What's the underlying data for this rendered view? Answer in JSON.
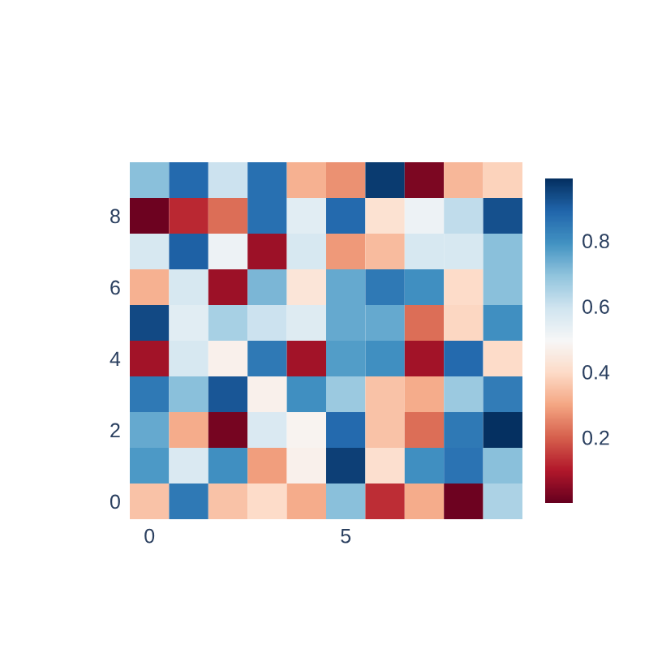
{
  "chart_data": {
    "type": "heatmap",
    "categories": [
      "0",
      null,
      null,
      null,
      null,
      "5",
      null,
      null,
      null,
      null
    ],
    "y_categories": [
      null,
      "8",
      null,
      "6",
      null,
      "4",
      null,
      "2",
      null,
      "0"
    ],
    "cells": [
      [
        0.7,
        0.88,
        0.6,
        0.87,
        0.32,
        0.27,
        0.97,
        0.03,
        0.33,
        0.38
      ],
      [
        0.01,
        0.12,
        0.22,
        0.87,
        0.55,
        0.88,
        0.42,
        0.52,
        0.62,
        0.93
      ],
      [
        0.58,
        0.9,
        0.52,
        0.07,
        0.58,
        0.28,
        0.34,
        0.58,
        0.58,
        0.7
      ],
      [
        0.32,
        0.58,
        0.07,
        0.72,
        0.43,
        0.75,
        0.85,
        0.8,
        0.4,
        0.7
      ],
      [
        0.94,
        0.55,
        0.66,
        0.6,
        0.56,
        0.75,
        0.75,
        0.22,
        0.39,
        0.8
      ],
      [
        0.08,
        0.58,
        0.47,
        0.85,
        0.08,
        0.77,
        0.8,
        0.08,
        0.88,
        0.4
      ],
      [
        0.85,
        0.7,
        0.92,
        0.47,
        0.8,
        0.68,
        0.35,
        0.31,
        0.68,
        0.84
      ],
      [
        0.75,
        0.31,
        0.02,
        0.57,
        0.48,
        0.88,
        0.35,
        0.22,
        0.85,
        0.99
      ],
      [
        0.78,
        0.57,
        0.8,
        0.29,
        0.47,
        0.96,
        0.41,
        0.8,
        0.86,
        0.7
      ],
      [
        0.35,
        0.85,
        0.35,
        0.4,
        0.31,
        0.7,
        0.13,
        0.31,
        0.01,
        0.65
      ]
    ],
    "clim": [
      0.0,
      0.99
    ],
    "cticks": [
      0.2,
      0.4,
      0.6,
      0.8
    ]
  }
}
